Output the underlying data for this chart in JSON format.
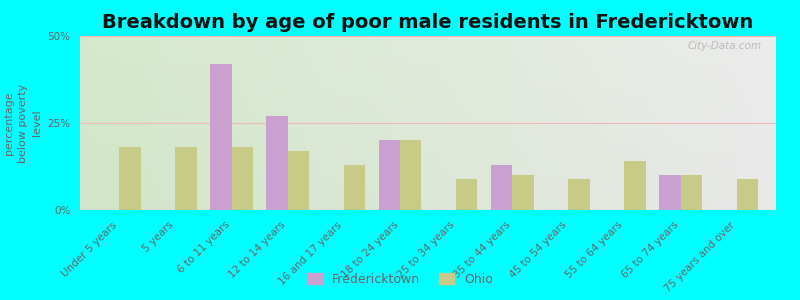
{
  "title": "Breakdown by age of poor male residents in Fredericktown",
  "ylabel": "percentage\nbelow poverty\nlevel",
  "categories": [
    "Under 5 years",
    "5 years",
    "6 to 11 years",
    "12 to 14 years",
    "16 and 17 years",
    "18 to 24 years",
    "25 to 34 years",
    "35 to 44 years",
    "45 to 54 years",
    "55 to 64 years",
    "65 to 74 years",
    "75 years and over"
  ],
  "fredericktown": [
    0,
    0,
    42,
    27,
    0,
    20,
    0,
    13,
    0,
    0,
    10,
    0
  ],
  "ohio": [
    18,
    18,
    18,
    17,
    13,
    20,
    9,
    10,
    9,
    14,
    10,
    9
  ],
  "fredericktown_color": "#c9a0d0",
  "ohio_color": "#c8cb88",
  "background_color": "#00ffff",
  "ylim": [
    0,
    50
  ],
  "yticks": [
    0,
    25,
    50
  ],
  "ytick_labels": [
    "0%",
    "25%",
    "50%"
  ],
  "title_fontsize": 14,
  "axis_label_fontsize": 8,
  "tick_fontsize": 7.5,
  "legend_labels": [
    "Fredericktown",
    "Ohio"
  ],
  "bar_width": 0.38,
  "watermark": "City-Data.com",
  "grid_color": "#f0b8b8",
  "text_color": "#666666"
}
